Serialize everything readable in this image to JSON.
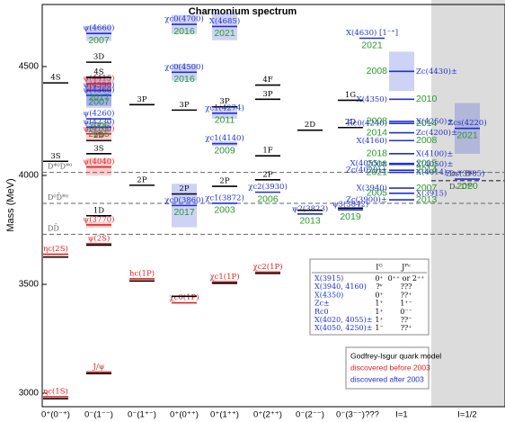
{
  "chart_data": {
    "type": "level-spectrum",
    "title": "Charmonium spectrum",
    "y_label": "Mass (MeV)",
    "categories": [
      "0⁺(0⁻⁺)",
      "0⁻(1⁻⁻)",
      "0⁻(1⁺⁻)",
      "0⁺(0⁺⁺)",
      "0⁺(1⁺⁺)",
      "0⁺(2⁺⁺)",
      "0⁻(2⁻⁻)",
      "0⁻(3⁻⁻)",
      "???",
      "I=1",
      "I=1/2"
    ],
    "ylim": [
      2938,
      4785
    ],
    "yticks": [
      3000,
      3500,
      4000,
      4500
    ],
    "groups": [
      {
        "name": "Godfrey-Isgur quark model",
        "color": "#000000"
      },
      {
        "name": "discovered before 2003",
        "color": "#e02020"
      },
      {
        "name": "discovered after 2003",
        "color": "#2030d0"
      }
    ],
    "year_color": "#2a9a2a",
    "levels": [
      {
        "column": 0,
        "mass": 2984,
        "group": 1,
        "label": "ηc(1S)"
      },
      {
        "column": 0,
        "mass": 2975,
        "group": 0
      },
      {
        "column": 0,
        "mass": 3638,
        "group": 1,
        "label": "ηc(2S)"
      },
      {
        "column": 0,
        "mass": 3625,
        "group": 0
      },
      {
        "column": 0,
        "mass": 4065,
        "group": 0,
        "label": "3S"
      },
      {
        "column": 0,
        "mass": 4425,
        "group": 0,
        "label": "4S"
      },
      {
        "column": 1,
        "mass": 3097,
        "group": 1,
        "label": "J/ψ"
      },
      {
        "column": 1,
        "mass": 3090,
        "group": 0
      },
      {
        "column": 1,
        "mass": 3686,
        "group": 1,
        "label": "ψ(2S)"
      },
      {
        "column": 1,
        "mass": 3680,
        "group": 0
      },
      {
        "column": 1,
        "mass": 3773,
        "group": 1,
        "label": "ψ(3770)",
        "width": 27
      },
      {
        "column": 1,
        "mass": 3815,
        "group": 0,
        "label": "1D"
      },
      {
        "column": 1,
        "mass": 4039,
        "group": 1,
        "label": "ψ(4040)",
        "width": 80
      },
      {
        "column": 1,
        "mass": 4100,
        "group": 0,
        "label": "3S"
      },
      {
        "column": 1,
        "mass": 4160,
        "group": 0,
        "label": "2D"
      },
      {
        "column": 1,
        "mass": 4191,
        "group": 1,
        "label": "ψ(4160)",
        "width": 70
      },
      {
        "column": 1,
        "mass": 4222,
        "group": 2,
        "label": "ψ(4230)",
        "year": 2015,
        "width": 50
      },
      {
        "column": 1,
        "mass": 4260,
        "group": 2,
        "label": "ψ(4260)",
        "year": 2005
      },
      {
        "column": 1,
        "mass": 4368,
        "group": 2,
        "label": "ψ(4360)",
        "year": 2007,
        "width": 115
      },
      {
        "column": 1,
        "mass": 4390,
        "group": 2,
        "label": "ψ(4390)",
        "year": 2017,
        "width": 140
      },
      {
        "column": 1,
        "mass": 4421,
        "group": 1,
        "label": "ψ(4415)",
        "width": 62
      },
      {
        "column": 1,
        "mass": 4450,
        "group": 0,
        "label": "4S"
      },
      {
        "column": 1,
        "mass": 4520,
        "group": 0,
        "label": "3D"
      },
      {
        "column": 1,
        "mass": 4652,
        "group": 2,
        "label": "ψ(4660)",
        "year": 2007,
        "width": 70
      },
      {
        "column": 2,
        "mass": 3525,
        "group": 1,
        "label": "hc(1P)"
      },
      {
        "column": 2,
        "mass": 3515,
        "group": 0
      },
      {
        "column": 2,
        "mass": 3955,
        "group": 0,
        "label": "2P"
      },
      {
        "column": 2,
        "mass": 4325,
        "group": 0,
        "label": "3P"
      },
      {
        "column": 3,
        "mass": 3415,
        "group": 1,
        "label": "χc0(1P)"
      },
      {
        "column": 3,
        "mass": 3445,
        "group": 0
      },
      {
        "column": 3,
        "mass": 3915,
        "group": 0,
        "label": "2P"
      },
      {
        "column": 3,
        "mass": 3862,
        "group": 2,
        "label": "χc0(3860)",
        "year": 2017,
        "width": 200
      },
      {
        "column": 3,
        "mass": 4300,
        "group": 0,
        "label": "3P"
      },
      {
        "column": 3,
        "mass": 4474,
        "group": 2,
        "label": "χc0(4500)",
        "year": 2016,
        "width": 77
      },
      {
        "column": 3,
        "mass": 4694,
        "group": 2,
        "label": "χc0(4700)",
        "year": 2016,
        "width": 87
      },
      {
        "column": 4,
        "mass": 3511,
        "group": 1,
        "label": "χc1(1P)"
      },
      {
        "column": 4,
        "mass": 3505,
        "group": 0
      },
      {
        "column": 4,
        "mass": 3950,
        "group": 0,
        "label": "2P"
      },
      {
        "column": 4,
        "mass": 3872,
        "group": 2,
        "label": "χc1(3872)",
        "year": 2003
      },
      {
        "column": 4,
        "mass": 4146,
        "group": 2,
        "label": "χc1(4140)",
        "year": 2009,
        "width": 22
      },
      {
        "column": 4,
        "mass": 4315,
        "group": 0,
        "label": "3P"
      },
      {
        "column": 4,
        "mass": 4286,
        "group": 2,
        "label": "χc1(4274)",
        "year": 2011,
        "width": 51
      },
      {
        "column": 4,
        "mass": 4684,
        "group": 2,
        "label": "X(4685)",
        "year": 2021,
        "width": 126
      },
      {
        "column": 5,
        "mass": 3556,
        "group": 1,
        "label": "χc2(1P)"
      },
      {
        "column": 5,
        "mass": 3550,
        "group": 0
      },
      {
        "column": 5,
        "mass": 3923,
        "group": 2,
        "label": "χc2(3930)",
        "year": 2006
      },
      {
        "column": 5,
        "mass": 3980,
        "group": 0,
        "label": "2P"
      },
      {
        "column": 5,
        "mass": 4090,
        "group": 0,
        "label": "1F"
      },
      {
        "column": 5,
        "mass": 4350,
        "group": 0,
        "label": "3P"
      },
      {
        "column": 5,
        "mass": 4415,
        "group": 0,
        "label": "4F"
      },
      {
        "column": 6,
        "mass": 3823,
        "group": 2,
        "label": "ψ2(3823)",
        "year": 2013
      },
      {
        "column": 6,
        "mass": 3840,
        "group": 0
      },
      {
        "column": 6,
        "mass": 4208,
        "group": 0,
        "label": "2D"
      },
      {
        "column": 7,
        "mass": 3842,
        "group": 2,
        "label": "ψ3(3842)",
        "year": 2019
      },
      {
        "column": 7,
        "mass": 3850,
        "group": 0
      },
      {
        "column": 7,
        "mass": 4220,
        "group": 0,
        "label": "2D"
      },
      {
        "column": 7,
        "mass": 4345,
        "group": 0,
        "label": "1G"
      },
      {
        "column": 8,
        "mass": 4630,
        "group": 2,
        "label": "X(4630) [1⁻⁺]",
        "year": 2021
      },
      {
        "column": 9,
        "mass": 3888,
        "group": 2,
        "label": "Zc(3900)±",
        "year": 2013
      },
      {
        "column": 9,
        "mass": 3918,
        "group": 2,
        "label": "X(3915)",
        "year": 2005
      },
      {
        "column": 9,
        "mass": 3942,
        "group": 2,
        "label": "X(3940)",
        "year": 2007
      },
      {
        "column": 9,
        "mass": 4014,
        "group": 2,
        "label": "X(4014)",
        "year": 2021
      },
      {
        "column": 9,
        "mass": 4024,
        "group": 2,
        "label": "Zc(4020)±",
        "year": 2014
      },
      {
        "column": 9,
        "mass": 4051,
        "group": 2,
        "label": "X(4050)±",
        "year": 2008
      },
      {
        "column": 9,
        "mass": 4055,
        "group": 2,
        "label": "X(4055)±",
        "year": 2015
      },
      {
        "column": 9,
        "mass": 4100,
        "group": 2,
        "label": "X(4100)±",
        "year": 2018
      },
      {
        "column": 9,
        "mass": 4160,
        "group": 2,
        "label": "X(4160)",
        "year": 2008
      },
      {
        "column": 9,
        "mass": 4196,
        "group": 2,
        "label": "Zc(4200)±",
        "year": 2014
      },
      {
        "column": 9,
        "mass": 4239,
        "group": 2,
        "label": "Rc0(4240)",
        "year": 2014
      },
      {
        "column": 9,
        "mass": 4248,
        "group": 2,
        "label": "X(4250)±",
        "year": 2008
      },
      {
        "column": 9,
        "mass": 4350,
        "group": 2,
        "label": "X(4350)",
        "year": 2010
      },
      {
        "column": 9,
        "mass": 4478,
        "group": 2,
        "label": "Zc(4430)±",
        "year": 2008,
        "width": 181
      },
      {
        "column": 10,
        "mass": 3983,
        "group": 2,
        "label": "Zcs(3985)⁻",
        "year": 2020
      },
      {
        "column": 10,
        "mass": 4216,
        "group": 2,
        "label": "Zcs(4220)",
        "year": 2021,
        "width": 233
      }
    ],
    "thresholds": [
      {
        "label": "DD̄",
        "mass": 3730
      },
      {
        "label": "D⁰D̄*⁰",
        "mass": 3872
      },
      {
        "label": "D*⁰D̄*⁰",
        "mass": 4014
      }
    ],
    "strange_thresholds": [
      {
        "label": "Dₛ*⁻D⁰",
        "mass": 3977
      },
      {
        "label": "Dₛ⁻D*⁰",
        "mass": 3975
      }
    ],
    "table": {
      "headers": [
        "Iᴳ",
        "Jᴾᶜ"
      ],
      "rows": [
        [
          "X(3915)",
          "0⁺",
          "0⁺⁺ or 2⁺⁺"
        ],
        [
          "X(3940, 4160)",
          "?ᵛ",
          "???"
        ],
        [
          "X(4350)",
          "0⁺",
          "??⁺"
        ],
        [
          "Zc±",
          "1⁺",
          "1⁺⁻"
        ],
        [
          "Rc0",
          "1⁺",
          "0⁻⁻"
        ],
        [
          "X(4020, 4055)±",
          "1⁺",
          "??⁻"
        ],
        [
          "X(4050, 4250)±",
          "1⁻",
          "??⁺"
        ]
      ]
    }
  }
}
